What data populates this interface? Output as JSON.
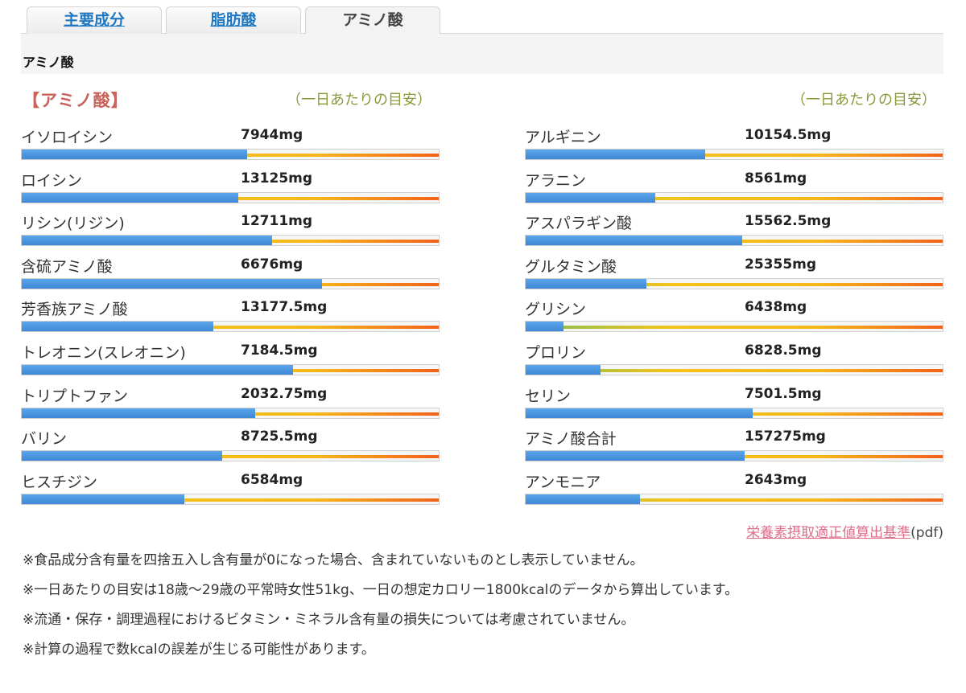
{
  "tabs": [
    {
      "label": "主要成分",
      "active": false
    },
    {
      "label": "脂肪酸",
      "active": false
    },
    {
      "label": "アミノ酸",
      "active": true
    }
  ],
  "section_title": "アミノ酸",
  "heading": "【アミノ酸】",
  "guide_label": "（一日あたりの目安）",
  "left_items": [
    {
      "name": "イソロイシン",
      "value": "7944mg",
      "level": 0.54
    },
    {
      "name": "ロイシン",
      "value": "13125mg",
      "level": 0.52
    },
    {
      "name": "リシン(リジン)",
      "value": "12711mg",
      "level": 0.6
    },
    {
      "name": "含硫アミノ酸",
      "value": "6676mg",
      "level": 0.72
    },
    {
      "name": "芳香族アミノ酸",
      "value": "13177.5mg",
      "level": 0.46
    },
    {
      "name": "トレオニン(スレオニン)",
      "value": "7184.5mg",
      "level": 0.65
    },
    {
      "name": "トリプトファン",
      "value": "2032.75mg",
      "level": 0.56
    },
    {
      "name": "バリン",
      "value": "8725.5mg",
      "level": 0.48
    },
    {
      "name": "ヒスチジン",
      "value": "6584mg",
      "level": 0.39
    }
  ],
  "right_items": [
    {
      "name": "アルギニン",
      "value": "10154.5mg",
      "level": 0.43
    },
    {
      "name": "アラニン",
      "value": "8561mg",
      "level": 0.31
    },
    {
      "name": "アスパラギン酸",
      "value": "15562.5mg",
      "level": 0.52
    },
    {
      "name": "グルタミン酸",
      "value": "25355mg",
      "level": 0.29
    },
    {
      "name": "グリシン",
      "value": "6438mg",
      "level": 0.09
    },
    {
      "name": "プロリン",
      "value": "6828.5mg",
      "level": 0.18
    },
    {
      "name": "セリン",
      "value": "7501.5mg",
      "level": 0.545
    },
    {
      "name": "アミノ酸合計",
      "value": "157275mg",
      "level": 0.525
    },
    {
      "name": "アンモニア",
      "value": "2643mg",
      "level": 0.275
    }
  ],
  "pdf_link": "栄養素摂取適正値算出基準",
  "pdf_suffix": "(pdf)",
  "notes": [
    "※食品成分含有量を四捨五入し含有量が0になった場合、含まれていないものとし表示していません。",
    "※一日あたりの目安は18歳～29歳の平常時女性51kg、一日の想定カロリー1800kcalのデータから算出しています。",
    "※流通・保存・調理過程におけるビタミン・ミネラル含有量の損失については考慮されていません。",
    "※計算の過程で数kcalの誤差が生じる可能性があります。"
  ],
  "colors": {
    "fill": "#3f87d6",
    "heading": "#c9625a",
    "guide": "#8a9a3a",
    "link": "#e06c8c",
    "tab_link": "#1f78c4"
  }
}
